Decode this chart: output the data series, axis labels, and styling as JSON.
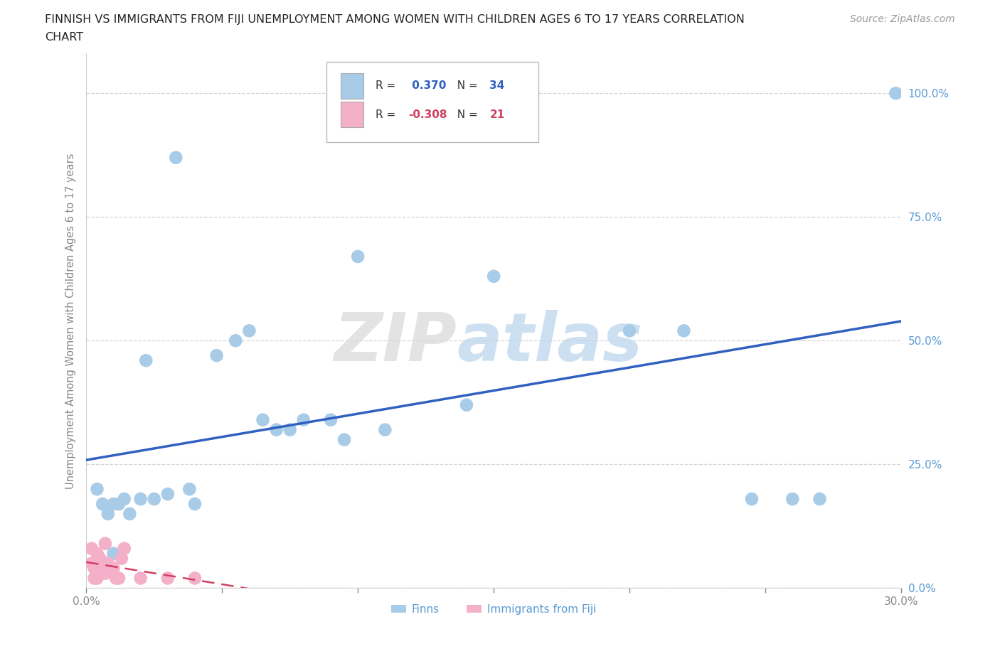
{
  "title_line1": "FINNISH VS IMMIGRANTS FROM FIJI UNEMPLOYMENT AMONG WOMEN WITH CHILDREN AGES 6 TO 17 YEARS CORRELATION",
  "title_line2": "CHART",
  "source": "Source: ZipAtlas.com",
  "ylabel": "Unemployment Among Women with Children Ages 6 to 17 years",
  "xlim": [
    0.0,
    0.3
  ],
  "ylim": [
    0.0,
    1.08
  ],
  "ytick_values": [
    0.0,
    0.25,
    0.5,
    0.75,
    1.0
  ],
  "xtick_values": [
    0.0,
    0.05,
    0.1,
    0.15,
    0.2,
    0.25,
    0.3
  ],
  "grid_color": "#d0d0d0",
  "background_color": "#ffffff",
  "finn_color": "#a8cce8",
  "fiji_color": "#f4b0c8",
  "finn_line_color": "#3060c0",
  "fiji_line_color": "#d04060",
  "finn_R": 0.37,
  "finn_N": 34,
  "fiji_R": -0.308,
  "fiji_N": 21,
  "legend_label_finn": "Finns",
  "legend_label_fiji": "Immigrants from Fiji",
  "finns_x": [
    0.004,
    0.006,
    0.008,
    0.01,
    0.01,
    0.012,
    0.014,
    0.016,
    0.02,
    0.022,
    0.025,
    0.03,
    0.033,
    0.038,
    0.04,
    0.048,
    0.055,
    0.06,
    0.065,
    0.07,
    0.075,
    0.08,
    0.09,
    0.095,
    0.1,
    0.11,
    0.14,
    0.15,
    0.2,
    0.22,
    0.245,
    0.26,
    0.27,
    0.298
  ],
  "finns_y": [
    0.2,
    0.17,
    0.15,
    0.07,
    0.17,
    0.17,
    0.18,
    0.15,
    0.18,
    0.46,
    0.18,
    0.19,
    0.87,
    0.2,
    0.17,
    0.47,
    0.5,
    0.52,
    0.34,
    0.32,
    0.32,
    0.34,
    0.34,
    0.3,
    0.67,
    0.32,
    0.37,
    0.63,
    0.52,
    0.52,
    0.18,
    0.18,
    0.18,
    1.0
  ],
  "fiji_x": [
    0.002,
    0.002,
    0.003,
    0.003,
    0.004,
    0.004,
    0.005,
    0.006,
    0.006,
    0.007,
    0.007,
    0.008,
    0.009,
    0.01,
    0.011,
    0.012,
    0.013,
    0.014,
    0.02,
    0.03,
    0.04
  ],
  "fiji_y": [
    0.08,
    0.05,
    0.04,
    0.02,
    0.07,
    0.02,
    0.06,
    0.05,
    0.03,
    0.09,
    0.03,
    0.05,
    0.04,
    0.04,
    0.02,
    0.02,
    0.06,
    0.08,
    0.02,
    0.02,
    0.02
  ]
}
